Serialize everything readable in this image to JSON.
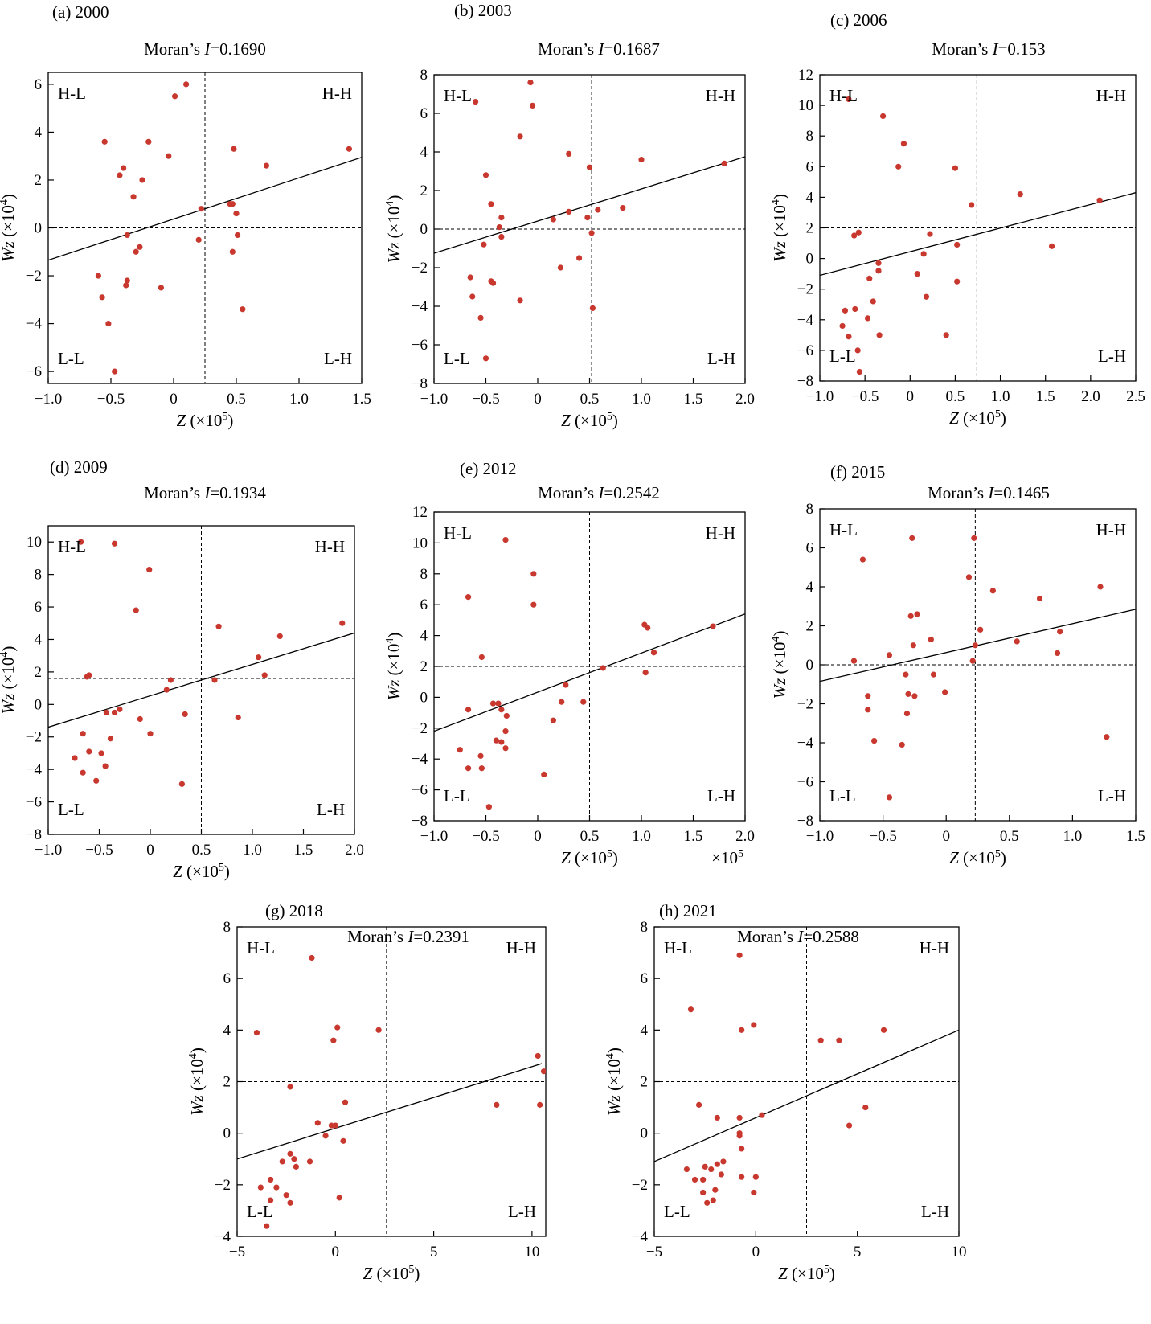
{
  "figure": {
    "bg_color": "#ffffff",
    "point_color": "#c8382f",
    "line_color": "#000000"
  },
  "chart_data": [
    {
      "type": "scatter",
      "panel_label": "(a) 2000",
      "title_prefix": "Moran’s ",
      "title_var": "I",
      "title_value": "=0.1690",
      "xlabel_var": "Z",
      "xlabel_unit": " (×10",
      "xlabel_exp": "5",
      "xlabel_close": ")",
      "ylabel_var": "Wz",
      "ylabel_unit": " (×10",
      "ylabel_exp": "4",
      "ylabel_close": ")",
      "quadrants": {
        "hl": "H-L",
        "hh": "H-H",
        "ll": "L-L",
        "lh": "L-H"
      },
      "xlim": [
        -1.0,
        1.5
      ],
      "ylim": [
        -6.5,
        6.5
      ],
      "xticks": [
        -1.0,
        -0.5,
        0,
        0.5,
        1.0,
        1.5
      ],
      "xtick_labels": [
        "−1.0",
        "−0.5",
        "0",
        "0.5",
        "1.0",
        "1.5"
      ],
      "yticks": [
        -6,
        -4,
        -2,
        0,
        2,
        4,
        6
      ],
      "ytick_labels": [
        "−6",
        "−4",
        "−2",
        "0",
        "2",
        "4",
        "6"
      ],
      "vline": 0.25,
      "hline": 0.0,
      "fit_line": [
        [
          -1.0,
          -1.35
        ],
        [
          1.5,
          2.95
        ]
      ],
      "x": [
        0.1,
        0.01,
        -0.55,
        -0.2,
        -0.04,
        0.48,
        -0.4,
        -0.43,
        -0.25,
        0.74,
        1.4,
        -0.32,
        0.22,
        0.45,
        0.47,
        0.5,
        -0.37,
        -0.27,
        0.2,
        -0.3,
        0.51,
        0.47,
        -0.6,
        -0.37,
        -0.38,
        -0.1,
        -0.57,
        0.55,
        -0.52,
        -0.47
      ],
      "y": [
        6.0,
        5.5,
        3.6,
        3.6,
        3.0,
        3.3,
        2.5,
        2.2,
        2.0,
        2.6,
        3.3,
        1.3,
        0.8,
        1.0,
        1.0,
        0.6,
        -0.3,
        -0.8,
        -0.5,
        -1.0,
        -0.3,
        -1.0,
        -2.0,
        -2.2,
        -2.4,
        -2.5,
        -2.9,
        -3.4,
        -4.0,
        -6.0
      ]
    },
    {
      "type": "scatter",
      "panel_label": "(b) 2003",
      "title_prefix": "Moran’s ",
      "title_var": "I",
      "title_value": "=0.1687",
      "xlabel_var": "Z",
      "xlabel_unit": " (×10",
      "xlabel_exp": "5",
      "xlabel_close": ")",
      "ylabel_var": "Wz",
      "ylabel_unit": " (×10",
      "ylabel_exp": "4",
      "ylabel_close": ")",
      "quadrants": {
        "hl": "H-L",
        "hh": "H-H",
        "ll": "L-L",
        "lh": "L-H"
      },
      "xlim": [
        -1.0,
        2.0
      ],
      "ylim": [
        -8,
        8
      ],
      "xticks": [
        -1.0,
        -0.5,
        0,
        0.5,
        1.0,
        1.5,
        2.0
      ],
      "xtick_labels": [
        "−1.0",
        "−0.5",
        "0",
        "0.5",
        "1.0",
        "1.5",
        "2.0"
      ],
      "yticks": [
        -8,
        -6,
        -4,
        -2,
        0,
        2,
        4,
        6,
        8
      ],
      "ytick_labels": [
        "−8",
        "−6",
        "−4",
        "−2",
        "0",
        "2",
        "4",
        "6",
        "8"
      ],
      "vline": 0.52,
      "hline": 0.0,
      "fit_line": [
        [
          -1.0,
          -1.25
        ],
        [
          2.0,
          3.75
        ]
      ],
      "x": [
        -0.07,
        -0.6,
        -0.05,
        -0.17,
        0.3,
        1.0,
        1.8,
        0.5,
        -0.5,
        -0.45,
        -0.35,
        -0.37,
        0.15,
        0.3,
        0.58,
        0.82,
        0.48,
        0.52,
        -0.35,
        -0.52,
        0.4,
        0.22,
        -0.65,
        -0.45,
        -0.43,
        -0.63,
        -0.17,
        0.53,
        -0.55,
        -0.5
      ],
      "y": [
        7.6,
        6.6,
        6.4,
        4.8,
        3.9,
        3.6,
        3.4,
        3.2,
        2.8,
        1.3,
        0.6,
        0.1,
        0.5,
        0.9,
        1.0,
        1.1,
        0.6,
        -0.2,
        -0.4,
        -0.8,
        -1.5,
        -2.0,
        -2.5,
        -2.7,
        -2.8,
        -3.5,
        -3.7,
        -4.1,
        -4.6,
        -6.7
      ]
    },
    {
      "type": "scatter",
      "panel_label": "(c) 2006",
      "title_prefix": "Moran’s ",
      "title_var": "I",
      "title_value": "=0.153",
      "xlabel_var": "Z",
      "xlabel_unit": " (×10",
      "xlabel_exp": "5",
      "xlabel_close": ")",
      "ylabel_var": "Wz",
      "ylabel_unit": " (×10",
      "ylabel_exp": "4",
      "ylabel_close": ")",
      "quadrants": {
        "hl": "H-L",
        "hh": "H-H",
        "ll": "L-L",
        "lh": "L-H"
      },
      "xlim": [
        -1.0,
        2.5
      ],
      "ylim": [
        -8,
        12
      ],
      "xticks": [
        -1.0,
        -0.5,
        0,
        0.5,
        1.0,
        1.5,
        2.0,
        2.5
      ],
      "xtick_labels": [
        "−1.0",
        "−0.5",
        "0",
        "0.5",
        "1.0",
        "1.5",
        "2.0",
        "2.5"
      ],
      "yticks": [
        -8,
        -6,
        -4,
        -2,
        0,
        2,
        4,
        6,
        8,
        10,
        12
      ],
      "ytick_labels": [
        "−8",
        "−6",
        "−4",
        "−2",
        "0",
        "2",
        "4",
        "6",
        "8",
        "10",
        "12"
      ],
      "vline": 0.74,
      "hline": 2.0,
      "fit_line": [
        [
          -1.0,
          -1.1
        ],
        [
          2.5,
          4.3
        ]
      ],
      "x": [
        -0.68,
        -0.3,
        -0.07,
        -0.13,
        0.5,
        0.68,
        1.22,
        2.1,
        -0.62,
        -0.57,
        0.22,
        0.52,
        -0.35,
        -0.45,
        -0.35,
        0.15,
        0.08,
        0.52,
        -0.41,
        0.18,
        -0.72,
        -0.61,
        -0.47,
        -0.75,
        -0.34,
        -0.68,
        1.57,
        0.4,
        -0.58,
        -0.56
      ],
      "y": [
        10.4,
        9.3,
        7.5,
        6.0,
        5.9,
        3.5,
        4.2,
        3.8,
        1.5,
        1.7,
        1.6,
        0.9,
        -0.3,
        -1.3,
        -0.8,
        0.3,
        -1.0,
        -1.5,
        -2.8,
        -2.5,
        -3.4,
        -3.3,
        -3.9,
        -4.4,
        -5.0,
        -5.1,
        0.8,
        -5.0,
        -6.0,
        -7.4
      ]
    },
    {
      "type": "scatter",
      "panel_label": "(d) 2009",
      "title_prefix": "Moran’s ",
      "title_var": "I",
      "title_value": "=0.1934",
      "xlabel_var": "Z",
      "xlabel_unit": " (×10",
      "xlabel_exp": "5",
      "xlabel_close": ")",
      "ylabel_var": "Wz",
      "ylabel_unit": " (×10",
      "ylabel_exp": "4",
      "ylabel_close": ")",
      "quadrants": {
        "hl": "H-L",
        "hh": "H-H",
        "ll": "L-L",
        "lh": "L-H"
      },
      "xlim": [
        -1.0,
        2.0
      ],
      "ylim": [
        -8,
        11
      ],
      "xticks": [
        -1.0,
        -0.5,
        0,
        0.5,
        1.0,
        1.5,
        2.0
      ],
      "xtick_labels": [
        "−1.0",
        "−0.5",
        "0",
        "0.5",
        "1.0",
        "1.5",
        "2.0"
      ],
      "yticks": [
        -8,
        -6,
        -4,
        -2,
        0,
        2,
        4,
        6,
        8,
        10
      ],
      "ytick_labels": [
        "−8",
        "−6",
        "−4",
        "−2",
        "0",
        "2",
        "4",
        "6",
        "8",
        "10"
      ],
      "vline": 0.5,
      "hline": 1.6,
      "fit_line": [
        [
          -1.0,
          -1.4
        ],
        [
          2.0,
          4.4
        ]
      ],
      "x": [
        -0.68,
        -0.35,
        -0.01,
        -0.14,
        0.67,
        1.88,
        1.27,
        1.06,
        1.12,
        -0.6,
        -0.62,
        0.2,
        0.16,
        0.63,
        -0.3,
        -0.43,
        -0.35,
        -0.1,
        0.34,
        0.0,
        -0.39,
        -0.66,
        -0.6,
        -0.48,
        -0.74,
        -0.44,
        -0.66,
        -0.53,
        0.31,
        0.86
      ],
      "y": [
        10.0,
        9.9,
        8.3,
        5.8,
        4.8,
        5.0,
        4.2,
        2.9,
        1.8,
        1.8,
        1.7,
        1.5,
        0.9,
        1.5,
        -0.3,
        -0.5,
        -0.5,
        -0.9,
        -0.6,
        -1.8,
        -2.1,
        -1.8,
        -2.9,
        -3.0,
        -3.3,
        -3.8,
        -4.2,
        -4.7,
        -4.9,
        -0.8
      ]
    },
    {
      "type": "scatter",
      "panel_label": "(e) 2012",
      "title_prefix": "Moran’s ",
      "title_var": "I",
      "title_value": "=0.2542",
      "xlabel_var": "Z",
      "xlabel_unit": " (×10",
      "xlabel_exp": "5",
      "xlabel_close": ")",
      "xlabel_extra": "×10",
      "xlabel_extra_exp": "5",
      "ylabel_var": "Wz",
      "ylabel_unit": " (×10",
      "ylabel_exp": "4",
      "ylabel_close": ")",
      "quadrants": {
        "hl": "H-L",
        "hh": "H-H",
        "ll": "L-L",
        "lh": "L-H"
      },
      "xlim": [
        -1.0,
        2.0
      ],
      "ylim": [
        -8,
        12
      ],
      "xticks": [
        -1.0,
        -0.5,
        0,
        0.5,
        1.0,
        1.5,
        2.0
      ],
      "xtick_labels": [
        "−1.0",
        "−0.5",
        "0",
        "0.5",
        "1.0",
        "1.5",
        "2.0"
      ],
      "yticks": [
        -8,
        -6,
        -4,
        -2,
        0,
        2,
        4,
        6,
        8,
        10,
        12
      ],
      "ytick_labels": [
        "−8",
        "−6",
        "−4",
        "−2",
        "0",
        "2",
        "4",
        "6",
        "8",
        "10",
        "12"
      ],
      "vline": 0.5,
      "hline": 2.0,
      "fit_line": [
        [
          -1.0,
          -2.2
        ],
        [
          2.0,
          5.4
        ]
      ],
      "x": [
        -0.31,
        -0.04,
        -0.04,
        -0.67,
        -0.54,
        1.06,
        1.03,
        1.12,
        1.69,
        0.63,
        1.04,
        -0.43,
        -0.38,
        -0.35,
        -0.31,
        -0.67,
        0.27,
        0.23,
        0.44,
        0.15,
        -0.3,
        -0.4,
        -0.35,
        -0.31,
        -0.75,
        -0.55,
        -0.67,
        -0.54,
        0.06,
        -0.47
      ],
      "y": [
        10.2,
        8.0,
        6.0,
        6.5,
        2.6,
        4.5,
        4.7,
        2.9,
        4.6,
        1.9,
        1.6,
        -0.4,
        -0.4,
        -0.8,
        -2.2,
        -0.8,
        0.8,
        -0.3,
        -0.3,
        -1.5,
        -1.2,
        -2.8,
        -2.9,
        -3.3,
        -3.4,
        -3.8,
        -4.6,
        -4.6,
        -5.0,
        -7.1
      ]
    },
    {
      "type": "scatter",
      "panel_label": "(f) 2015",
      "title_prefix": "Moran’s ",
      "title_var": "I",
      "title_value": "=0.1465",
      "xlabel_var": "Z",
      "xlabel_unit": " (×10",
      "xlabel_exp": "5",
      "xlabel_close": ")",
      "ylabel_var": "Wz",
      "ylabel_unit": " (×10",
      "ylabel_exp": "4",
      "ylabel_close": ")",
      "quadrants": {
        "hl": "H-L",
        "hh": "H-H",
        "ll": "L-L",
        "lh": "L-H"
      },
      "xlim": [
        -1.0,
        1.5
      ],
      "ylim": [
        -8,
        8
      ],
      "xticks": [
        -1.0,
        -0.5,
        0,
        0.5,
        1.0,
        1.5
      ],
      "xtick_labels": [
        "−1.0",
        "−0.5",
        "0",
        "0.5",
        "1.0",
        "1.5"
      ],
      "yticks": [
        -8,
        -6,
        -4,
        -2,
        0,
        2,
        4,
        6,
        8
      ],
      "ytick_labels": [
        "−8",
        "−6",
        "−4",
        "−2",
        "0",
        "2",
        "4",
        "6",
        "8"
      ],
      "vline": 0.23,
      "hline": 0.0,
      "fit_line": [
        [
          -1.0,
          -0.85
        ],
        [
          1.5,
          2.85
        ]
      ],
      "x": [
        -0.66,
        -0.27,
        0.22,
        0.18,
        0.37,
        0.74,
        1.22,
        -0.23,
        -0.28,
        0.27,
        -0.26,
        -0.12,
        0.56,
        0.9,
        0.88,
        -0.73,
        0.21,
        0.23,
        -0.45,
        -0.1,
        -0.32,
        -0.3,
        -0.25,
        -0.62,
        -0.01,
        -0.62,
        -0.31,
        -0.57,
        -0.35,
        1.27,
        -0.45
      ],
      "y": [
        5.4,
        6.5,
        6.5,
        4.5,
        3.8,
        3.4,
        4.0,
        2.6,
        2.5,
        1.8,
        1.0,
        1.3,
        1.2,
        1.7,
        0.6,
        0.2,
        0.2,
        1.0,
        0.5,
        -0.5,
        -0.5,
        -1.5,
        -1.6,
        -1.6,
        -1.4,
        -2.3,
        -2.5,
        -3.9,
        -4.1,
        -3.7,
        -6.8
      ]
    },
    {
      "type": "scatter",
      "panel_label": "(g) 2018",
      "title_prefix": "Moran’s ",
      "title_var": "I",
      "title_value": "=0.2391",
      "xlabel_var": "Z",
      "xlabel_unit": " (×10",
      "xlabel_exp": "5",
      "xlabel_close": ")",
      "ylabel_var": "Wz",
      "ylabel_unit": " (×10",
      "ylabel_exp": "4",
      "ylabel_close": ")",
      "quadrants": {
        "hl": "H-L",
        "hh": "H-H",
        "ll": "L-L",
        "lh": "L-H"
      },
      "xlim": [
        -5,
        10.7
      ],
      "ylim": [
        -4,
        8
      ],
      "xticks": [
        -5,
        0,
        5,
        10
      ],
      "xtick_labels": [
        "−5",
        "0",
        "5",
        "10"
      ],
      "yticks": [
        -4,
        -2,
        0,
        2,
        4,
        6,
        8
      ],
      "ytick_labels": [
        "−4",
        "−2",
        "0",
        "2",
        "4",
        "6",
        "8"
      ],
      "vline": 2.6,
      "hline": 2.0,
      "fit_line": [
        [
          -5.0,
          -1.0
        ],
        [
          10.5,
          2.7
        ]
      ],
      "x": [
        -1.2,
        -4.0,
        0.1,
        -0.1,
        2.2,
        10.3,
        10.6,
        10.4,
        -2.3,
        0.5,
        8.2,
        -0.9,
        -0.2,
        0.0,
        0.4,
        -0.5,
        -2.3,
        -2.1,
        -1.3,
        -2.7,
        -2.0,
        -3.3,
        -3.0,
        -2.5,
        -3.8,
        -2.3,
        0.2,
        -3.3,
        -3.5
      ],
      "y": [
        6.8,
        3.9,
        4.1,
        3.6,
        4.0,
        3.0,
        2.4,
        1.1,
        1.8,
        1.2,
        1.1,
        0.4,
        0.3,
        0.3,
        -0.3,
        -0.1,
        -0.8,
        -1.0,
        -1.1,
        -1.1,
        -1.3,
        -1.8,
        -2.1,
        -2.4,
        -2.1,
        -2.7,
        -2.5,
        -2.6,
        -3.6
      ]
    },
    {
      "type": "scatter",
      "panel_label": "(h) 2021",
      "title_prefix": "Moran’s ",
      "title_var": "I",
      "title_value": "=0.2588",
      "xlabel_var": "Z",
      "xlabel_unit": " (×10",
      "xlabel_exp": "5",
      "xlabel_close": ")",
      "ylabel_var": "Wz",
      "ylabel_unit": " (×10",
      "ylabel_exp": "4",
      "ylabel_close": ")",
      "quadrants": {
        "hl": "H-L",
        "hh": "H-H",
        "ll": "L-L",
        "lh": "L-H"
      },
      "xlim": [
        -5,
        10
      ],
      "ylim": [
        -4,
        8
      ],
      "xticks": [
        -5,
        0,
        5,
        10
      ],
      "xtick_labels": [
        "−5",
        "0",
        "5",
        "10"
      ],
      "yticks": [
        -4,
        -2,
        0,
        2,
        4,
        6,
        8
      ],
      "ytick_labels": [
        "−4",
        "−2",
        "0",
        "2",
        "4",
        "6",
        "8"
      ],
      "vline": 2.5,
      "hline": 2.0,
      "fit_line": [
        [
          -5.0,
          -1.1
        ],
        [
          10.0,
          4.0
        ]
      ],
      "x": [
        -0.8,
        -3.2,
        -0.7,
        -0.1,
        3.2,
        4.1,
        6.3,
        -2.8,
        -1.9,
        -0.8,
        0.3,
        -0.8,
        -0.8,
        -0.7,
        -1.6,
        -1.9,
        -2.2,
        -2.5,
        -3.4,
        -1.7,
        -3.0,
        -2.6,
        -0.7,
        0.0,
        -2.0,
        -0.1,
        -2.6,
        -2.1,
        -2.4,
        4.6,
        5.4
      ],
      "y": [
        6.9,
        4.8,
        4.0,
        4.2,
        3.6,
        3.6,
        4.0,
        1.1,
        0.6,
        0.6,
        0.7,
        0.0,
        -0.1,
        -0.6,
        -1.1,
        -1.2,
        -1.4,
        -1.3,
        -1.4,
        -1.6,
        -1.8,
        -1.8,
        -1.7,
        -1.7,
        -2.2,
        -2.3,
        -2.3,
        -2.6,
        -2.7,
        0.3,
        1.0
      ]
    }
  ]
}
